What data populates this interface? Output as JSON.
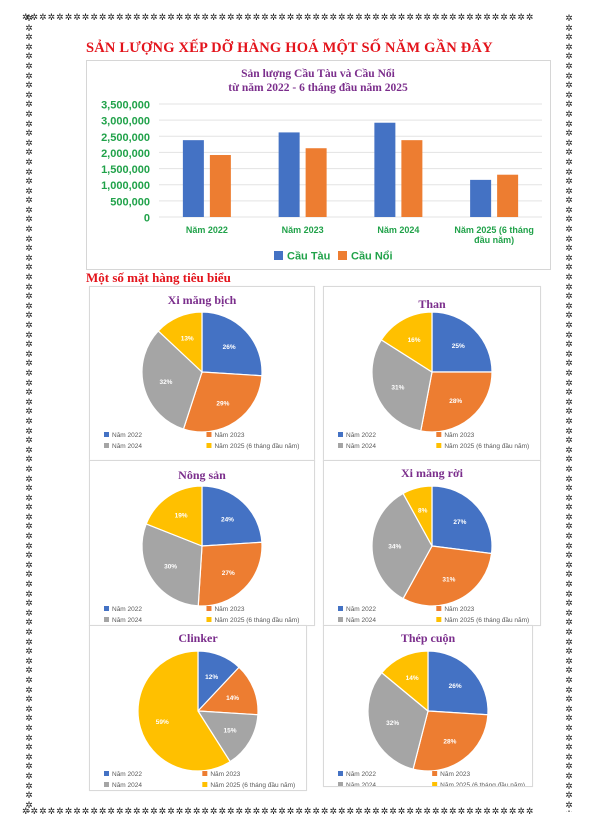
{
  "page": {
    "title": "SẢN LƯỢNG XẾP DỠ HÀNG HOÁ MỘT SỐ NĂM GẦN ĐÂY",
    "section_label": "Một số mặt hàng tiêu biểu"
  },
  "colors": {
    "blue": "#4472C4",
    "orange": "#ED7D31",
    "gray": "#A5A5A5",
    "gold": "#FFC000",
    "title_red": "#E3131B",
    "title_purple": "#7B2E8C",
    "axis_green": "#21A24A"
  },
  "chart_data": [
    {
      "type": "bar",
      "title": "Sản lượng Cầu Tàu và Cầu Nổi",
      "subtitle": "từ năm 2022 - 6 tháng đầu năm 2025",
      "categories": [
        "Năm 2022",
        "Năm 2023",
        "Năm 2024",
        "Năm 2025 (6 tháng đầu năm)"
      ],
      "series": [
        {
          "name": "Cầu Tàu",
          "values": [
            2380000,
            2620000,
            2920000,
            1150000
          ]
        },
        {
          "name": "Cầu Nổi",
          "values": [
            1920000,
            2130000,
            2380000,
            1310000
          ]
        }
      ],
      "yticks": [
        "3,500,000",
        "3,000,000",
        "2,500,000",
        "2,000,000",
        "1,500,000",
        "1,000,000",
        "500,000",
        "0"
      ],
      "ylim": [
        0,
        3500000
      ],
      "grid": true,
      "legend": "bottom"
    },
    {
      "type": "pie",
      "title": "Xi măng bịch",
      "labels": [
        "Năm 2022",
        "Năm 2023",
        "Năm 2024",
        "Năm 2025 (6 tháng đầu năm)"
      ],
      "values": [
        26,
        29,
        32,
        13
      ],
      "value_labels": [
        "26%",
        "29%",
        "32%",
        "13%"
      ],
      "legend": "bottom"
    },
    {
      "type": "pie",
      "title": "Than",
      "labels": [
        "Năm 2022",
        "Năm 2023",
        "Năm 2024",
        "Năm 2025 (6 tháng đầu năm)"
      ],
      "values": [
        25,
        28,
        31,
        16
      ],
      "value_labels": [
        "25%",
        "28%",
        "31%",
        "16%"
      ],
      "legend": "bottom"
    },
    {
      "type": "pie",
      "title": "Nông sản",
      "labels": [
        "Năm 2022",
        "Năm 2023",
        "Năm 2024",
        "Năm 2025 (6 tháng đầu năm)"
      ],
      "values": [
        24,
        27,
        30,
        19
      ],
      "value_labels": [
        "24%",
        "27%",
        "30%",
        "19%"
      ],
      "legend": "bottom"
    },
    {
      "type": "pie",
      "title": "Xi măng rời",
      "labels": [
        "Năm 2022",
        "Năm 2023",
        "Năm 2024",
        "Năm 2025 (6 tháng đầu năm)"
      ],
      "values": [
        27,
        31,
        34,
        8
      ],
      "value_labels": [
        "27%",
        "31%",
        "34%",
        "8%"
      ],
      "legend": "bottom"
    },
    {
      "type": "pie",
      "title": "Clinker",
      "labels": [
        "Năm 2022",
        "Năm 2023",
        "Năm 2024",
        "Năm 2025 (6 tháng đầu năm)"
      ],
      "values": [
        12,
        14,
        15,
        59
      ],
      "value_labels": [
        "12%",
        "14%",
        "15%",
        "59%"
      ],
      "legend": "bottom"
    },
    {
      "type": "pie",
      "title": "Thép cuộn",
      "labels": [
        "Năm 2022",
        "Năm 2023",
        "Năm 2024",
        "Năm 2025 (6 tháng đầu năm)"
      ],
      "values": [
        26,
        28,
        32,
        14
      ],
      "value_labels": [
        "26%",
        "28%",
        "32%",
        "14%"
      ],
      "legend": "bottom"
    }
  ]
}
